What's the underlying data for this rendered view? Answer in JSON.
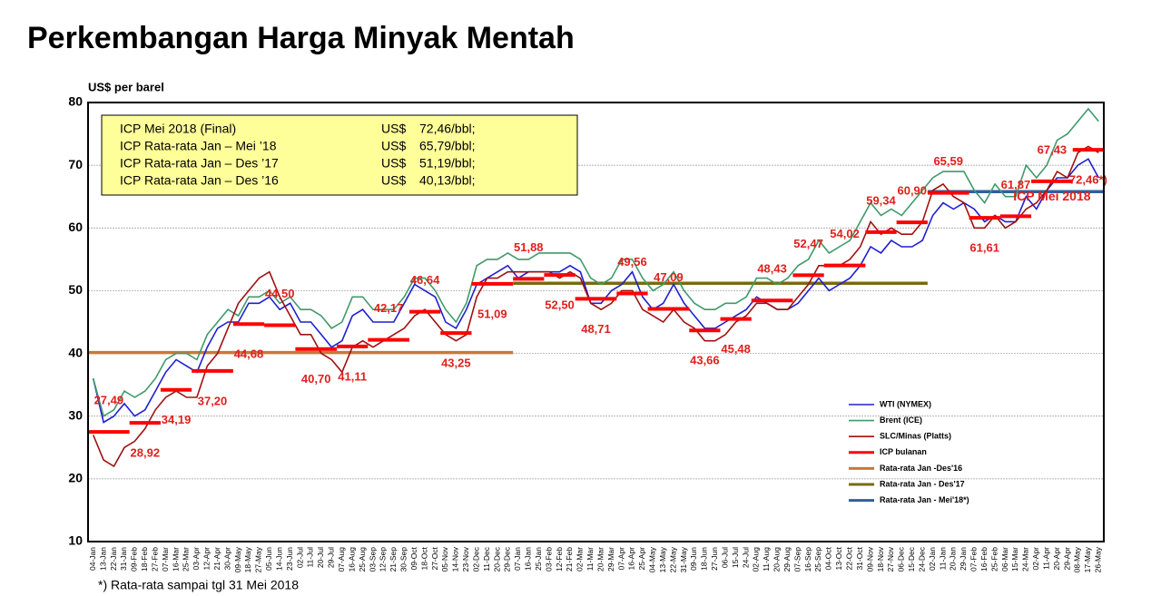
{
  "chart_data": {
    "type": "line",
    "title": "Perkembangan Harga Minyak Mentah",
    "y_label": "US$ per barel",
    "footnote": "*) Rata-rata  sampai  tgl 31 Mei 2018",
    "ylim": [
      10,
      80
    ],
    "yticks": [
      10,
      20,
      30,
      40,
      50,
      60,
      70,
      80
    ],
    "grid": true,
    "legend_position": "lower right",
    "categories": [
      "04-Jan",
      "13-Jan",
      "22-Jan",
      "31-Jan",
      "09-Feb",
      "18-Feb",
      "27-Feb",
      "07-Mar",
      "16-Mar",
      "25-Mar",
      "03-Apr",
      "12-Apr",
      "21-Apr",
      "30-Apr",
      "09-May",
      "18-May",
      "27-May",
      "05-Jun",
      "14-Jun",
      "23-Jun",
      "02-Jul",
      "11-Jul",
      "20-Jul",
      "29-Jul",
      "07-Aug",
      "16-Aug",
      "25-Aug",
      "03-Sep",
      "12-Sep",
      "21-Sep",
      "30-Sep",
      "09-Oct",
      "18-Oct",
      "27-Oct",
      "05-Nov",
      "14-Nov",
      "23-Nov",
      "02-Dec",
      "11-Dec",
      "20-Dec",
      "29-Dec",
      "07-Jan",
      "16-Jan",
      "25-Jan",
      "03-Feb",
      "12-Feb",
      "21-Feb",
      "02-Mar",
      "11-Mar",
      "20-Mar",
      "29-Mar",
      "07-Apr",
      "16-Apr",
      "25-Apr",
      "04-May",
      "13-May",
      "22-May",
      "31-May",
      "09-Jun",
      "18-Jun",
      "27-Jun",
      "06-Jul",
      "15-Jul",
      "24-Jul",
      "02-Aug",
      "11-Aug",
      "20-Aug",
      "29-Aug",
      "07-Sep",
      "16-Sep",
      "25-Sep",
      "04-Oct",
      "13-Oct",
      "22-Oct",
      "31-Oct",
      "09-Nov",
      "18-Nov",
      "27-Nov",
      "06-Dec",
      "15-Dec",
      "24-Dec",
      "02-Jan",
      "11-Jan",
      "20-Jan",
      "29-Jan",
      "07-Feb",
      "16-Feb",
      "25-Feb",
      "06-Mar",
      "15-Mar",
      "24-Mar",
      "02-Apr",
      "11-Apr",
      "20-Apr",
      "29-Apr",
      "08-May",
      "17-May",
      "26-May"
    ],
    "series": [
      {
        "name": "WTI (NYMEX)",
        "color": "#1f1fd0",
        "values": [
          36,
          29,
          30,
          32,
          30,
          31,
          34,
          37,
          39,
          38,
          37,
          41,
          44,
          45,
          45,
          48,
          48,
          49,
          47,
          48,
          45,
          45,
          43,
          41,
          42,
          46,
          47,
          45,
          45,
          45,
          48,
          51,
          50,
          49,
          45,
          44,
          47,
          51,
          52,
          53,
          54,
          52,
          53,
          53,
          53,
          53,
          54,
          53,
          48,
          48,
          50,
          51,
          53,
          49,
          47,
          48,
          51,
          48,
          46,
          44,
          44,
          45,
          46,
          47,
          49,
          48,
          47,
          47,
          48,
          50,
          52,
          50,
          51,
          52,
          54,
          57,
          56,
          58,
          57,
          57,
          58,
          62,
          64,
          63,
          64,
          63,
          61,
          62,
          61,
          61,
          65,
          63,
          66,
          68,
          68,
          70,
          71,
          68
        ]
      },
      {
        "name": "Brent (ICE)",
        "color": "#3f9a6a",
        "values": [
          36,
          30,
          31,
          34,
          33,
          34,
          36,
          39,
          40,
          40,
          39,
          43,
          45,
          47,
          46,
          49,
          49,
          50,
          48,
          49,
          47,
          47,
          46,
          44,
          45,
          49,
          49,
          47,
          47,
          47,
          49,
          52,
          52,
          50,
          47,
          45,
          48,
          54,
          55,
          55,
          56,
          55,
          55,
          56,
          56,
          56,
          56,
          55,
          52,
          51,
          52,
          55,
          55,
          52,
          50,
          51,
          53,
          50,
          48,
          47,
          47,
          48,
          48,
          49,
          52,
          52,
          51,
          52,
          54,
          55,
          58,
          56,
          57,
          58,
          61,
          64,
          62,
          63,
          62,
          64,
          66,
          68,
          69,
          69,
          69,
          66,
          64,
          67,
          65,
          65,
          70,
          68,
          70,
          74,
          75,
          77,
          79,
          77
        ]
      },
      {
        "name": "SLC/Minas (Platts)",
        "color": "#a01010",
        "values": [
          27,
          23,
          22,
          25,
          26,
          28,
          31,
          33,
          34,
          33,
          33,
          38,
          40,
          44,
          48,
          50,
          52,
          53,
          49,
          46,
          43,
          43,
          40,
          39,
          37,
          41,
          42,
          41,
          42,
          43,
          44,
          46,
          47,
          45,
          43,
          42,
          43,
          49,
          52,
          52,
          53,
          53,
          53,
          53,
          53,
          52,
          53,
          52,
          48,
          47,
          48,
          50,
          50,
          47,
          46,
          45,
          47,
          45,
          44,
          42,
          42,
          43,
          45,
          46,
          48,
          48,
          47,
          47,
          49,
          51,
          54,
          54,
          54,
          55,
          57,
          61,
          59,
          60,
          59,
          59,
          61,
          66,
          67,
          65,
          64,
          60,
          60,
          62,
          60,
          61,
          63,
          64,
          66,
          69,
          68,
          72,
          73,
          72
        ]
      }
    ],
    "icp": {
      "name": "ICP  bulanan",
      "color": "#ff0000",
      "values": [
        27.49,
        28.92,
        34.19,
        37.2,
        44.68,
        44.5,
        40.7,
        41.11,
        42.17,
        46.64,
        43.25,
        51.09,
        51.88,
        52.5,
        48.71,
        49.56,
        47.09,
        43.66,
        45.48,
        48.43,
        52.47,
        54.02,
        59.34,
        60.9,
        65.59,
        61.61,
        61.87,
        67.43,
        72.46
      ],
      "value_labels": [
        "27,49",
        "28,92",
        "34,19",
        "37,20",
        "44,68",
        "44,50",
        "40,70",
        "41,11",
        "42,17",
        "46,64",
        "43,25",
        "51,09",
        "51,88",
        "52,50",
        "48,71",
        "49,56",
        "47,09",
        "43,66",
        "45,48",
        "48,43",
        "52,47",
        "54,02",
        "59,34",
        "60,90",
        "65,59",
        "61,61",
        "61,87",
        "67,43",
        "72,46*)"
      ]
    },
    "averages": [
      {
        "name": "Rata-rata Jan -Des'16",
        "color": "#c8783a",
        "value": 40.13
      },
      {
        "name": "Rata-rata Jan - Des'17",
        "color": "#7a6a10",
        "value": 51.19
      },
      {
        "name": "Rata-rata Jan - Mei'18*)",
        "color": "#2f5fa0",
        "value": 65.79
      }
    ],
    "annotation": "ICP Mei 2018",
    "info_box": [
      [
        "ICP Mei 2018 (Final)",
        "US$",
        "72,46/bbl;"
      ],
      [
        "ICP Rata-rata  Jan – Mei ’18",
        "US$",
        "65,79/bbl;"
      ],
      [
        "ICP Rata-rata  Jan – Des ’17",
        "US$",
        "51,19/bbl;"
      ],
      [
        "ICP Rata-rata  Jan – Des ’16",
        "US$",
        "40,13/bbl;"
      ]
    ]
  }
}
